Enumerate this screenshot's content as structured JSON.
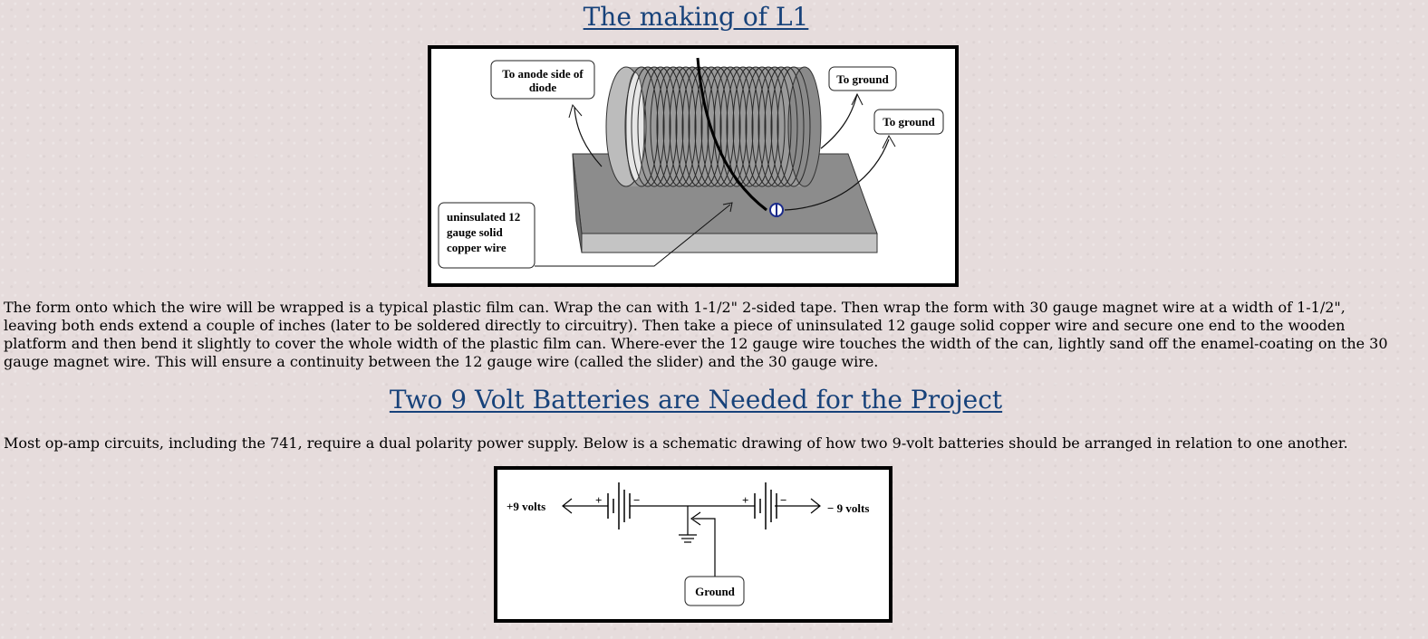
{
  "section1": {
    "title": "The making of L1",
    "figure": {
      "label_anode": [
        "To anode side of",
        "diode"
      ],
      "label_ground_1": "To ground",
      "label_ground_2": "To ground",
      "label_wire": [
        "uninsulated 12",
        "gauge solid",
        "copper wire"
      ]
    },
    "paragraph": "The form onto which the wire will be wrapped is a typical plastic film can. Wrap the can with 1-1/2\" 2-sided tape. Then wrap the form with 30 gauge magnet wire at a width of 1-1/2\", leaving both ends extend a couple of inches (later to be soldered directly to circuitry). Then take a piece of uninsulated 12 gauge solid copper wire and secure one end to the wooden platform and then bend it slightly to cover the whole width of the plastic film can. Where-ever the 12 gauge wire touches the width of the can, lightly sand off the enamel-coating on the 30 gauge magnet wire. This will ensure a continuity between the 12 gauge wire (called the slider) and the 30 gauge wire."
  },
  "section2": {
    "title": "Two 9 Volt Batteries are Needed for the Project",
    "paragraph": "Most op-amp circuits, including the 741, require a dual polarity power supply. Below is a schematic drawing of how two 9-volt batteries should be arranged in relation to one another.",
    "schematic": {
      "label_plus": "+9 volts",
      "label_minus": "− 9 volts",
      "label_ground": "Ground",
      "sign_plus": "+",
      "sign_minus": "−"
    }
  }
}
